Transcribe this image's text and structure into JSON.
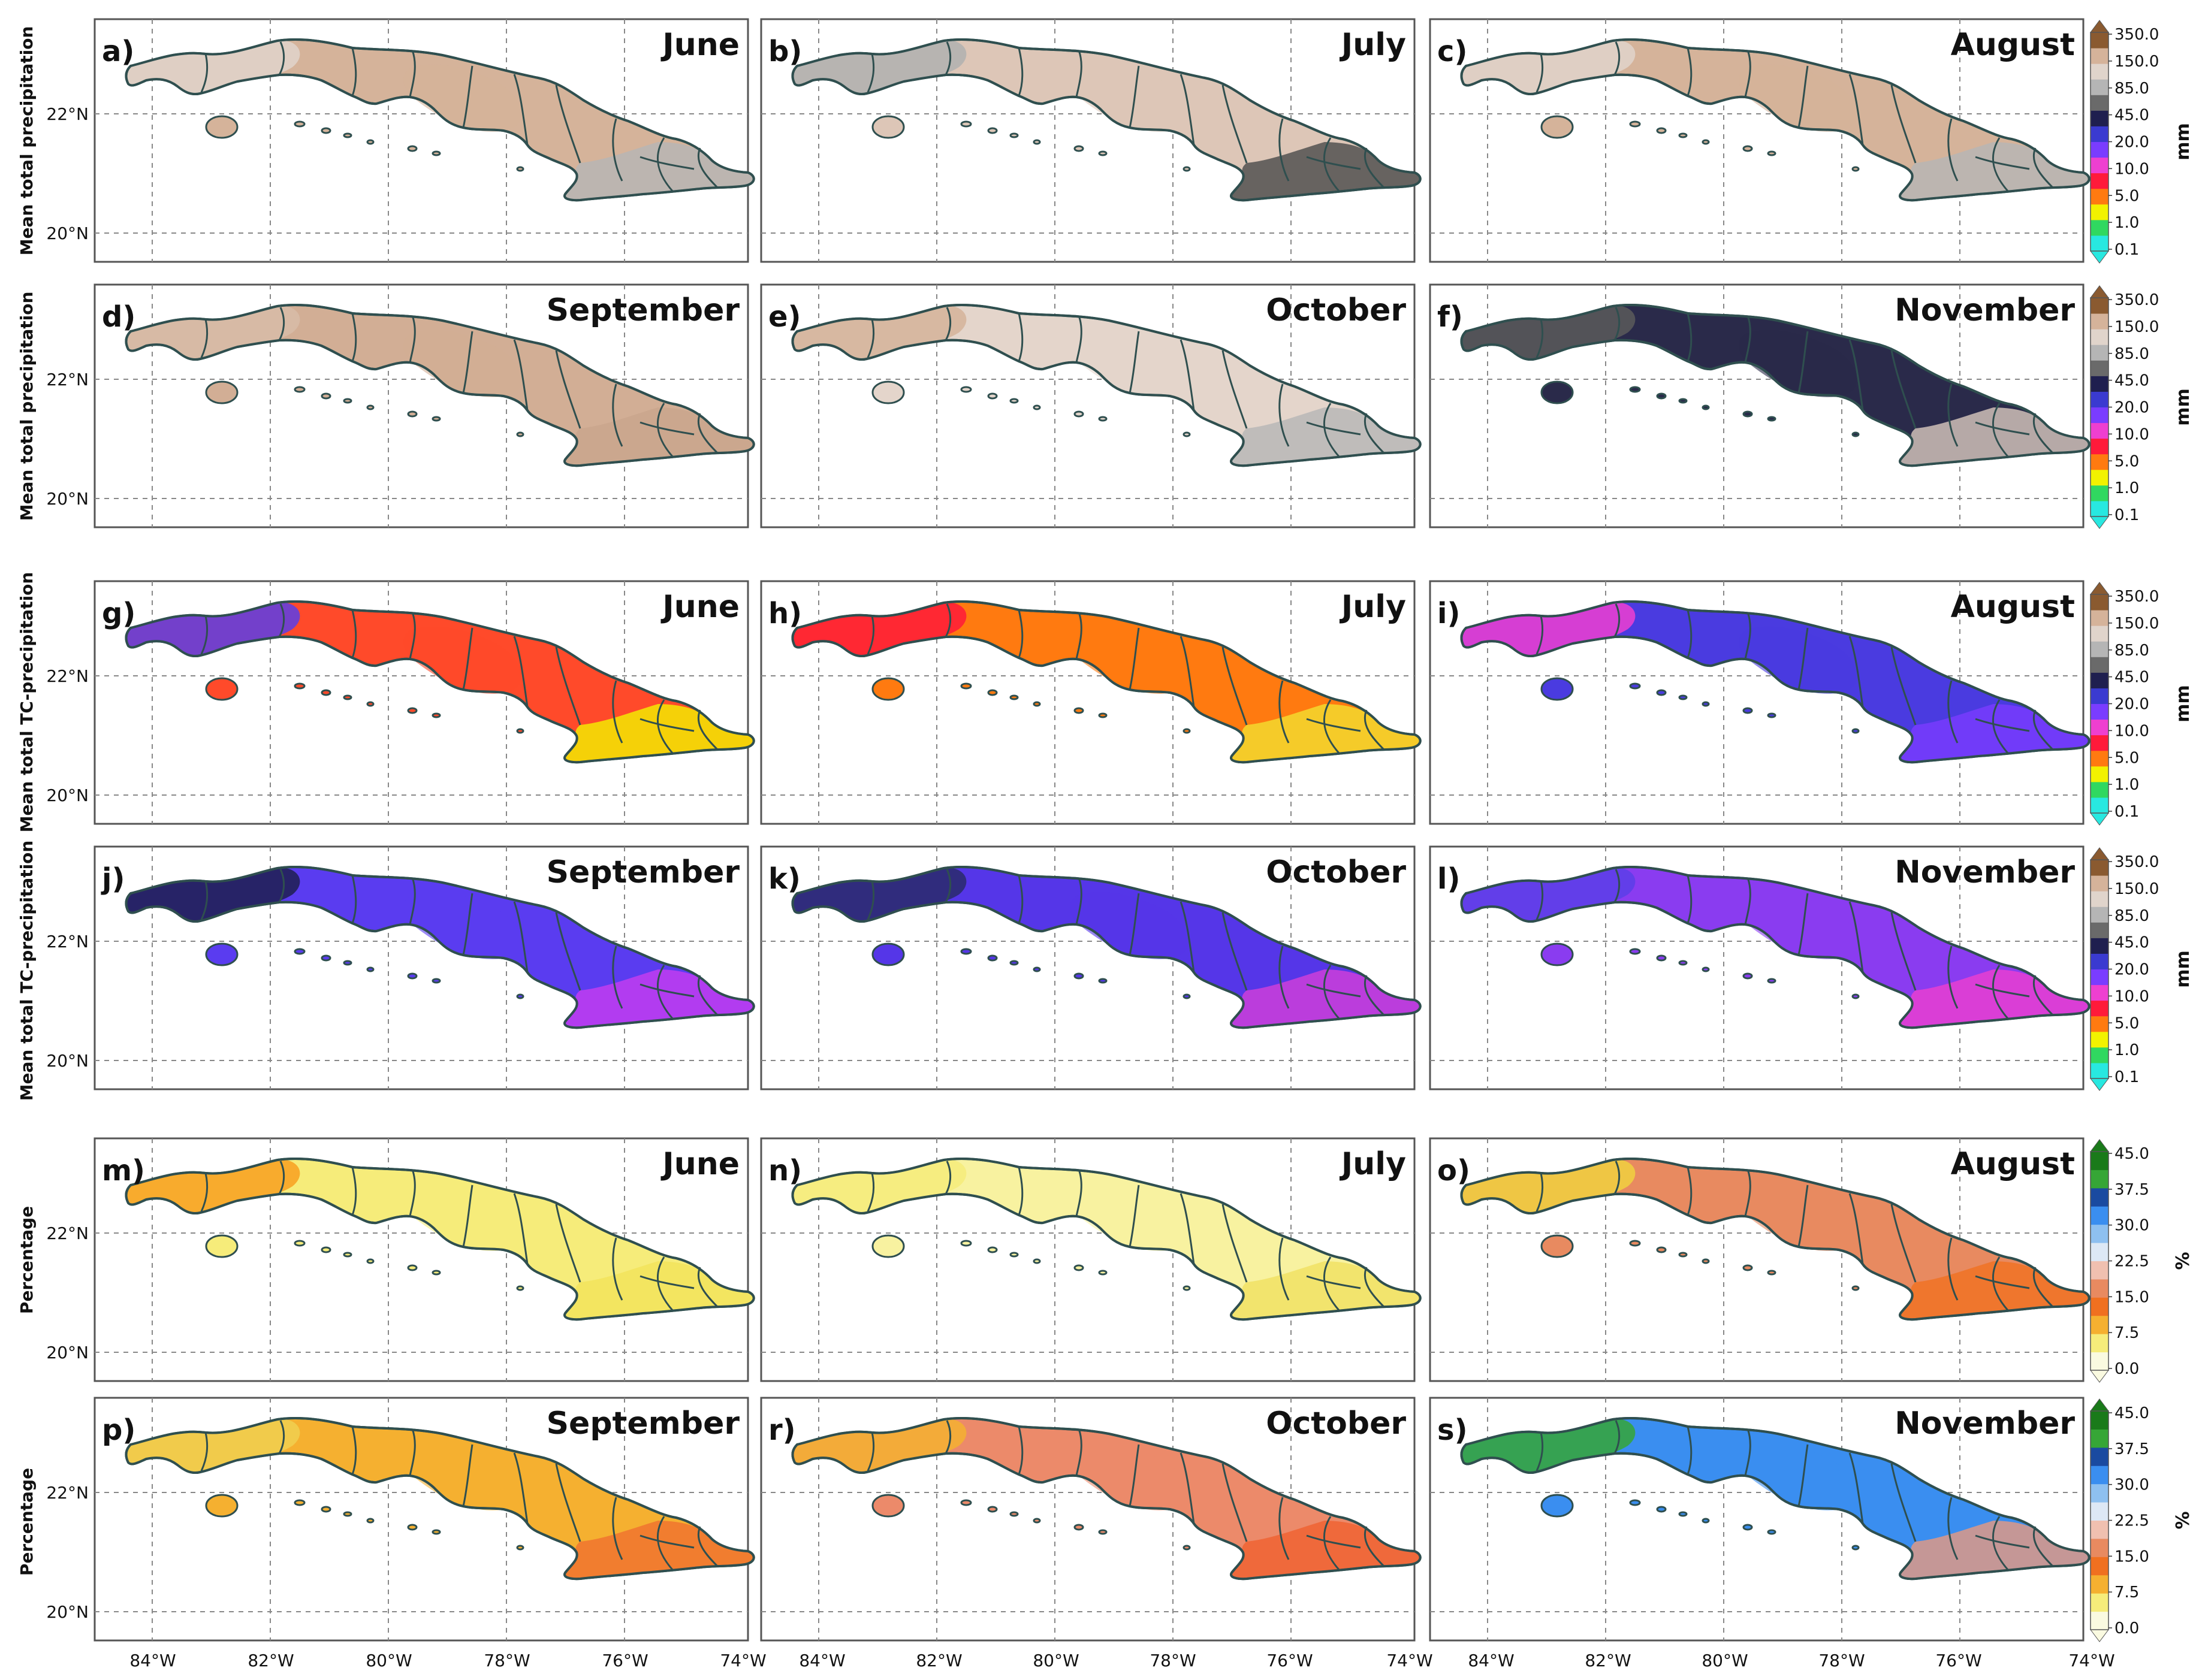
{
  "figure": {
    "lon_labels": [
      "84°W",
      "82°W",
      "80°W",
      "78°W",
      "76°W",
      "74°W"
    ],
    "lat_labels": [
      "22°N",
      "20°N"
    ],
    "row_ylabels": [
      "Mean total precipitation",
      "Mean total precipitation",
      "Mean total TC-precipitation",
      "Mean total TC-precipitation",
      "Percentage",
      "Percentage"
    ],
    "panels": [
      {
        "letter": "a)",
        "month": "June",
        "scheme": "mm",
        "fill": "#d5b39a",
        "patches": [
          {
            "color": "#e0d4cb"
          },
          {
            "color": "#b5b5b5"
          }
        ]
      },
      {
        "letter": "b)",
        "month": "July",
        "scheme": "mm",
        "fill": "#ddc6b7",
        "patches": [
          {
            "color": "#b0b0b0"
          },
          {
            "color": "#4a4a4a"
          }
        ]
      },
      {
        "letter": "c)",
        "month": "August",
        "scheme": "mm",
        "fill": "#d5b39a",
        "patches": [
          {
            "color": "#e0d4cb"
          },
          {
            "color": "#b5b5b5"
          }
        ]
      },
      {
        "letter": "d)",
        "month": "September",
        "scheme": "mm",
        "fill": "#d2ae95",
        "patches": [
          {
            "color": "#d8bca8"
          },
          {
            "color": "#c9a58c"
          }
        ]
      },
      {
        "letter": "e)",
        "month": "October",
        "scheme": "mm",
        "fill": "#e4d5cb",
        "patches": [
          {
            "color": "#d5b39a"
          },
          {
            "color": "#b5b5b5"
          }
        ]
      },
      {
        "letter": "f)",
        "month": "November",
        "scheme": "mm",
        "fill": "#2a2a4a",
        "patches": [
          {
            "color": "#5b5b5b"
          },
          {
            "color": "#d9c9be"
          }
        ]
      },
      {
        "letter": "g)",
        "month": "June",
        "scheme": "mm",
        "fill": "#ff4a2a",
        "patches": [
          {
            "color": "#5a3ee8"
          },
          {
            "color": "#f2f200"
          }
        ]
      },
      {
        "letter": "h)",
        "month": "July",
        "scheme": "mm",
        "fill": "#ff7a10",
        "patches": [
          {
            "color": "#ff1a3a"
          },
          {
            "color": "#f2e030"
          }
        ]
      },
      {
        "letter": "i)",
        "month": "August",
        "scheme": "mm",
        "fill": "#4a3be0",
        "patches": [
          {
            "color": "#ee3fd0"
          },
          {
            "color": "#7a3cff"
          }
        ]
      },
      {
        "letter": "j)",
        "month": "September",
        "scheme": "mm",
        "fill": "#5a3cf0",
        "patches": [
          {
            "color": "#1f1f4f"
          },
          {
            "color": "#c83cf0"
          }
        ]
      },
      {
        "letter": "k)",
        "month": "October",
        "scheme": "mm",
        "fill": "#5536e8",
        "patches": [
          {
            "color": "#2a2a6a"
          },
          {
            "color": "#d540d8"
          }
        ]
      },
      {
        "letter": "l)",
        "month": "November",
        "scheme": "mm",
        "fill": "#8a3cf0",
        "patches": [
          {
            "color": "#5a3ee8"
          },
          {
            "color": "#ee3fd0"
          }
        ]
      },
      {
        "letter": "m)",
        "month": "June",
        "scheme": "pct",
        "fill": "#f6ec7a",
        "patches": [
          {
            "color": "#f8a020"
          },
          {
            "color": "#f3e35a"
          }
        ]
      },
      {
        "letter": "n)",
        "month": "July",
        "scheme": "pct",
        "fill": "#f8f2a0",
        "patches": [
          {
            "color": "#f6ec7a"
          },
          {
            "color": "#f0e060"
          }
        ]
      },
      {
        "letter": "o)",
        "month": "August",
        "scheme": "pct",
        "fill": "#e88a60",
        "patches": [
          {
            "color": "#f0d040"
          },
          {
            "color": "#f07020"
          }
        ]
      },
      {
        "letter": "p)",
        "month": "September",
        "scheme": "pct",
        "fill": "#f5b030",
        "patches": [
          {
            "color": "#f0d050"
          },
          {
            "color": "#f07030"
          }
        ]
      },
      {
        "letter": "r)",
        "month": "October",
        "scheme": "pct",
        "fill": "#ec8a6a",
        "patches": [
          {
            "color": "#f5b030"
          },
          {
            "color": "#f06030"
          }
        ]
      },
      {
        "letter": "s)",
        "month": "November",
        "scheme": "pct",
        "fill": "#3a8ef0",
        "patches": [
          {
            "color": "#36a636"
          },
          {
            "color": "#e89a80"
          }
        ]
      }
    ],
    "colorbars": [
      {
        "unit": "mm",
        "labels": [
          "0.1",
          "1.0",
          "5.0",
          "10.0",
          "20.0",
          "45.0",
          "85.0",
          "150.0",
          "350.0"
        ],
        "colors": [
          "#28e8e0",
          "#30d860",
          "#f2f200",
          "#ff7a10",
          "#ff1a3a",
          "#ee3fd0",
          "#7a3cff",
          "#3a3ad0",
          "#1f1f4f",
          "#6a6a6a",
          "#b5b5b5",
          "#e0d4cb",
          "#d5b39a",
          "#8a5a30"
        ]
      },
      {
        "unit": "%",
        "labels": [
          "0.0",
          "7.5",
          "15.0",
          "22.5",
          "30.0",
          "37.5",
          "45.0"
        ],
        "colors": [
          "#fafae0",
          "#f6ec7a",
          "#f5b030",
          "#f07020",
          "#e88a60",
          "#f0c0b0",
          "#dde8f5",
          "#8ec0f0",
          "#3a8ef0",
          "#1a4aa0",
          "#36a636",
          "#1a7a1a"
        ]
      }
    ]
  }
}
